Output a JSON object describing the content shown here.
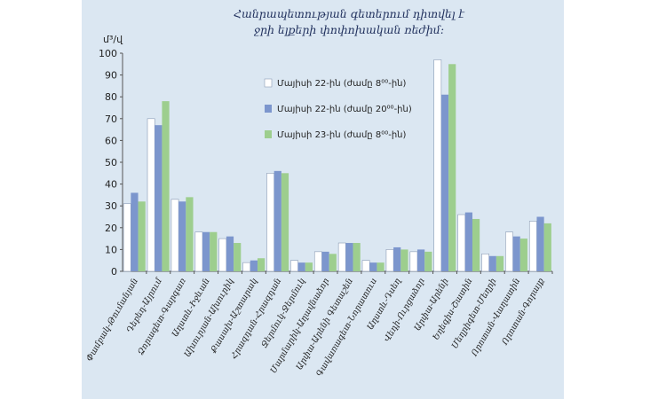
{
  "chart_data": {
    "type": "bar",
    "title_lines": [
      "Հանրապետության գետերում դիտվել է",
      "ջրի ելքերի փոփոխական ռեժիմ:"
    ],
    "ylabel": "մ³/վ",
    "ylim": [
      0,
      100
    ],
    "yticks": [
      "0",
      "10",
      "20",
      "30",
      "40",
      "50",
      "60",
      "70",
      "80",
      "90",
      "100"
    ],
    "categories": [
      "Փամբակ-Թումանյան",
      "Դեբեդ-Այրում",
      "Ձորագետ-Գարգառ",
      "Աղստև-Իջևան",
      "Ախուրյան-Ախուրիկ",
      "Քասախ-Աշտարակ",
      "Հրազդան-Հրազդան",
      "Ջերմուկ-Ջերմուկ",
      "Մարմարիկ-Աղավնաձոր",
      "Արփա-Արենի Գետաշեն",
      "Գավառագետ-Նորատուս",
      "Աղստև-Դսեղ",
      "Վեդի-Ուրցաձոր",
      "Արփա-Արենի",
      "Եղեգիս-Շատին",
      "Մեղրիգետ-Մեղրի",
      "Որոտան-Վաղատին",
      "Որոտան-Գորայք"
    ],
    "series": [
      {
        "name": "Մայիսի 22-ին (ժամը 8⁰⁰-ին)",
        "color": "#ffffff",
        "values": [
          31,
          70,
          33,
          18,
          15,
          4,
          45,
          5,
          9,
          13,
          5,
          10,
          9,
          97,
          26,
          8,
          18,
          23
        ]
      },
      {
        "name": "Մայիսի 22-ին (ժամը 20⁰⁰-ին)",
        "color": "#7c96cd",
        "values": [
          36,
          67,
          32,
          18,
          16,
          5,
          46,
          4,
          9,
          13,
          4,
          11,
          10,
          81,
          27,
          7,
          16,
          25
        ]
      },
      {
        "name": "Մայիսի 23-ին (ժամը 8⁰⁰-ին)",
        "color": "#9dce8e",
        "values": [
          32,
          78,
          34,
          18,
          13,
          6,
          45,
          4,
          8,
          13,
          4,
          10,
          9,
          95,
          24,
          7,
          15,
          22
        ]
      }
    ],
    "legend_position": "upper-right",
    "grid": false
  }
}
